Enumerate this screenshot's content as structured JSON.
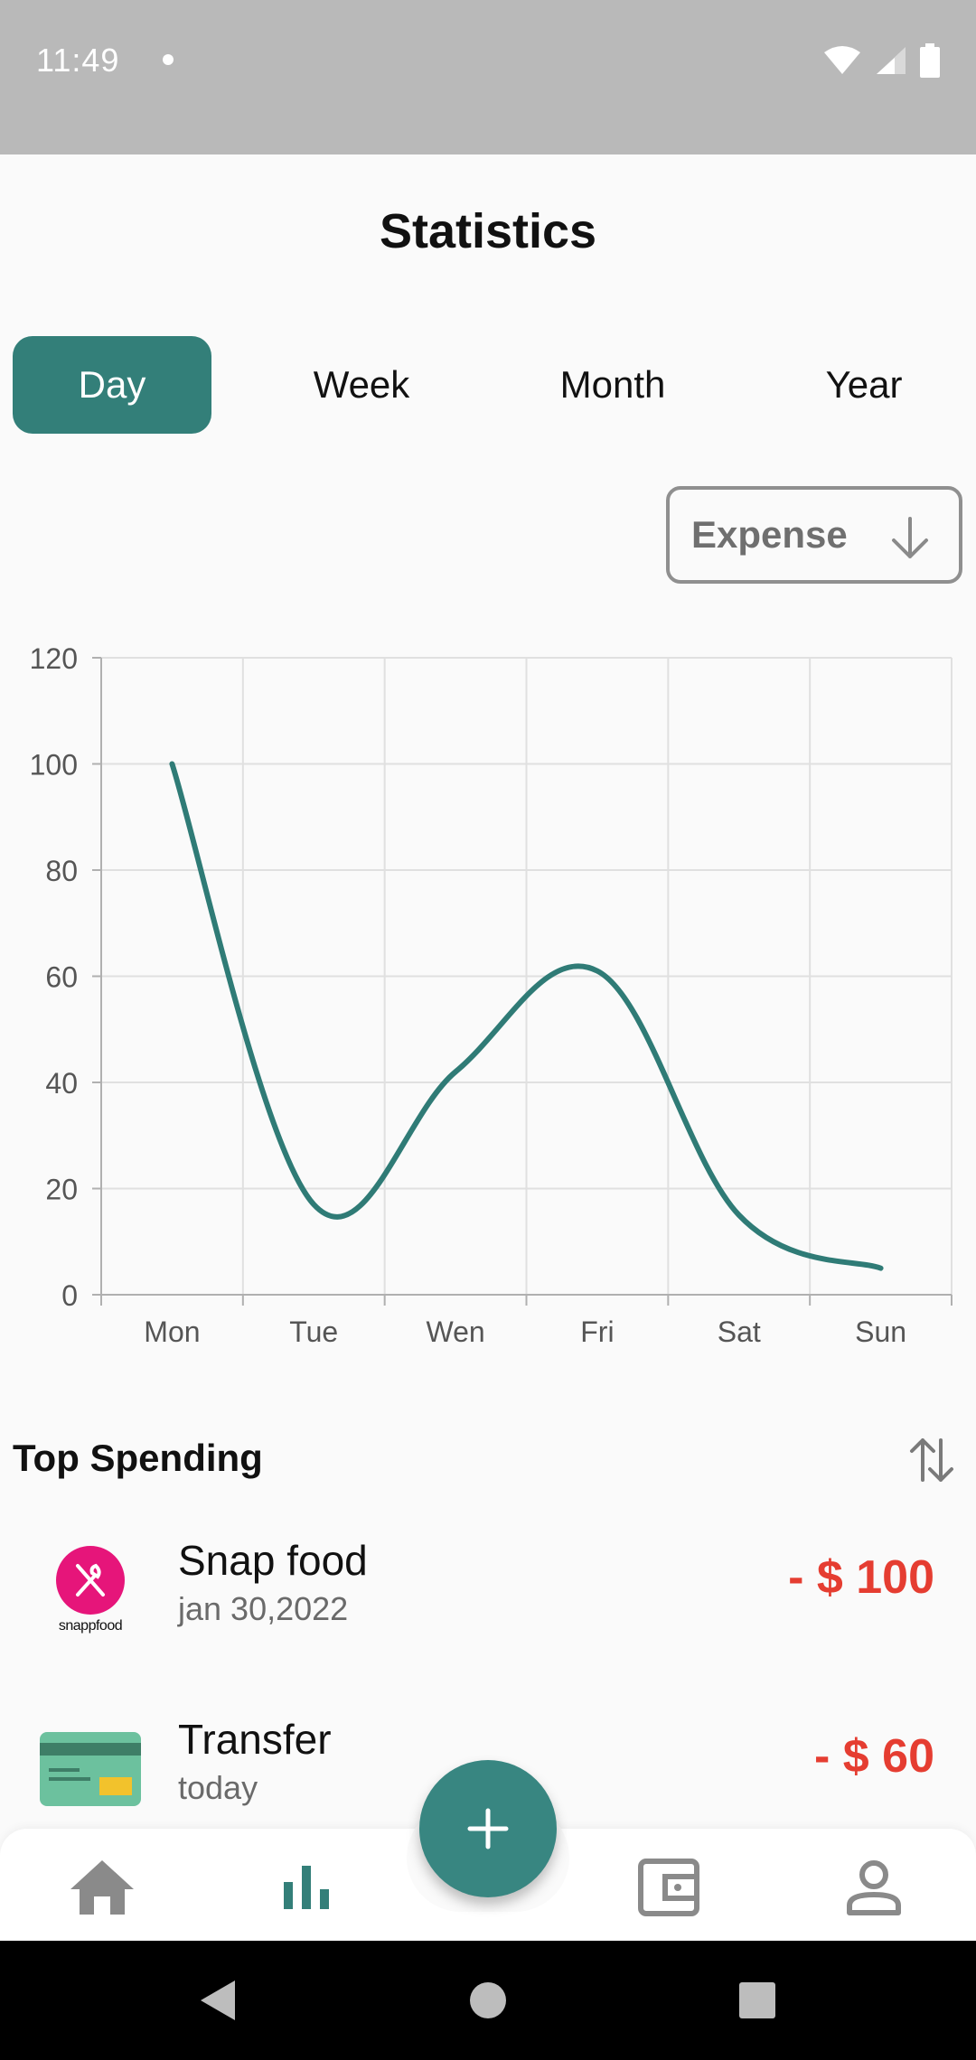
{
  "status_bar": {
    "time": "11:49",
    "icons": [
      "wifi-icon",
      "signal-icon",
      "battery-icon"
    ]
  },
  "header": {
    "title": "Statistics"
  },
  "period_tabs": {
    "active": "Day",
    "items": [
      {
        "label": "Day"
      },
      {
        "label": "Week"
      },
      {
        "label": "Month"
      },
      {
        "label": "Year"
      }
    ]
  },
  "type_select": {
    "value": "Expense",
    "icon": "arrow-down-icon"
  },
  "chart_data": {
    "type": "line",
    "categories": [
      "Mon",
      "Tue",
      "Wen",
      "Fri",
      "Sat",
      "Sun"
    ],
    "series": [
      {
        "values": [
          100,
          17,
          42,
          61,
          15,
          5
        ]
      }
    ],
    "yticks": [
      0,
      20,
      40,
      60,
      80,
      100,
      120
    ],
    "ylim": [
      0,
      120
    ],
    "grid": true,
    "smooth": true,
    "color": "#2f7b76"
  },
  "top_spending": {
    "title": "Top Spending",
    "sort_icon": "sort-icon",
    "items": [
      {
        "name": "Snap food",
        "date": "jan 30,2022",
        "amount": "- $ 100",
        "logo": "snappfood-logo",
        "logo_text": "snappfood"
      },
      {
        "name": "Transfer",
        "date": "today",
        "amount": "- $ 60",
        "logo": "card-icon"
      }
    ]
  },
  "bottom_nav": {
    "items": [
      "home-icon",
      "statistics-icon",
      "wallet-icon",
      "profile-icon"
    ],
    "active": "statistics-icon",
    "fab_icon": "plus-icon"
  },
  "colors": {
    "accent": "#337f79",
    "expense": "#e53d31",
    "status_bar": "#b9b9b9"
  }
}
